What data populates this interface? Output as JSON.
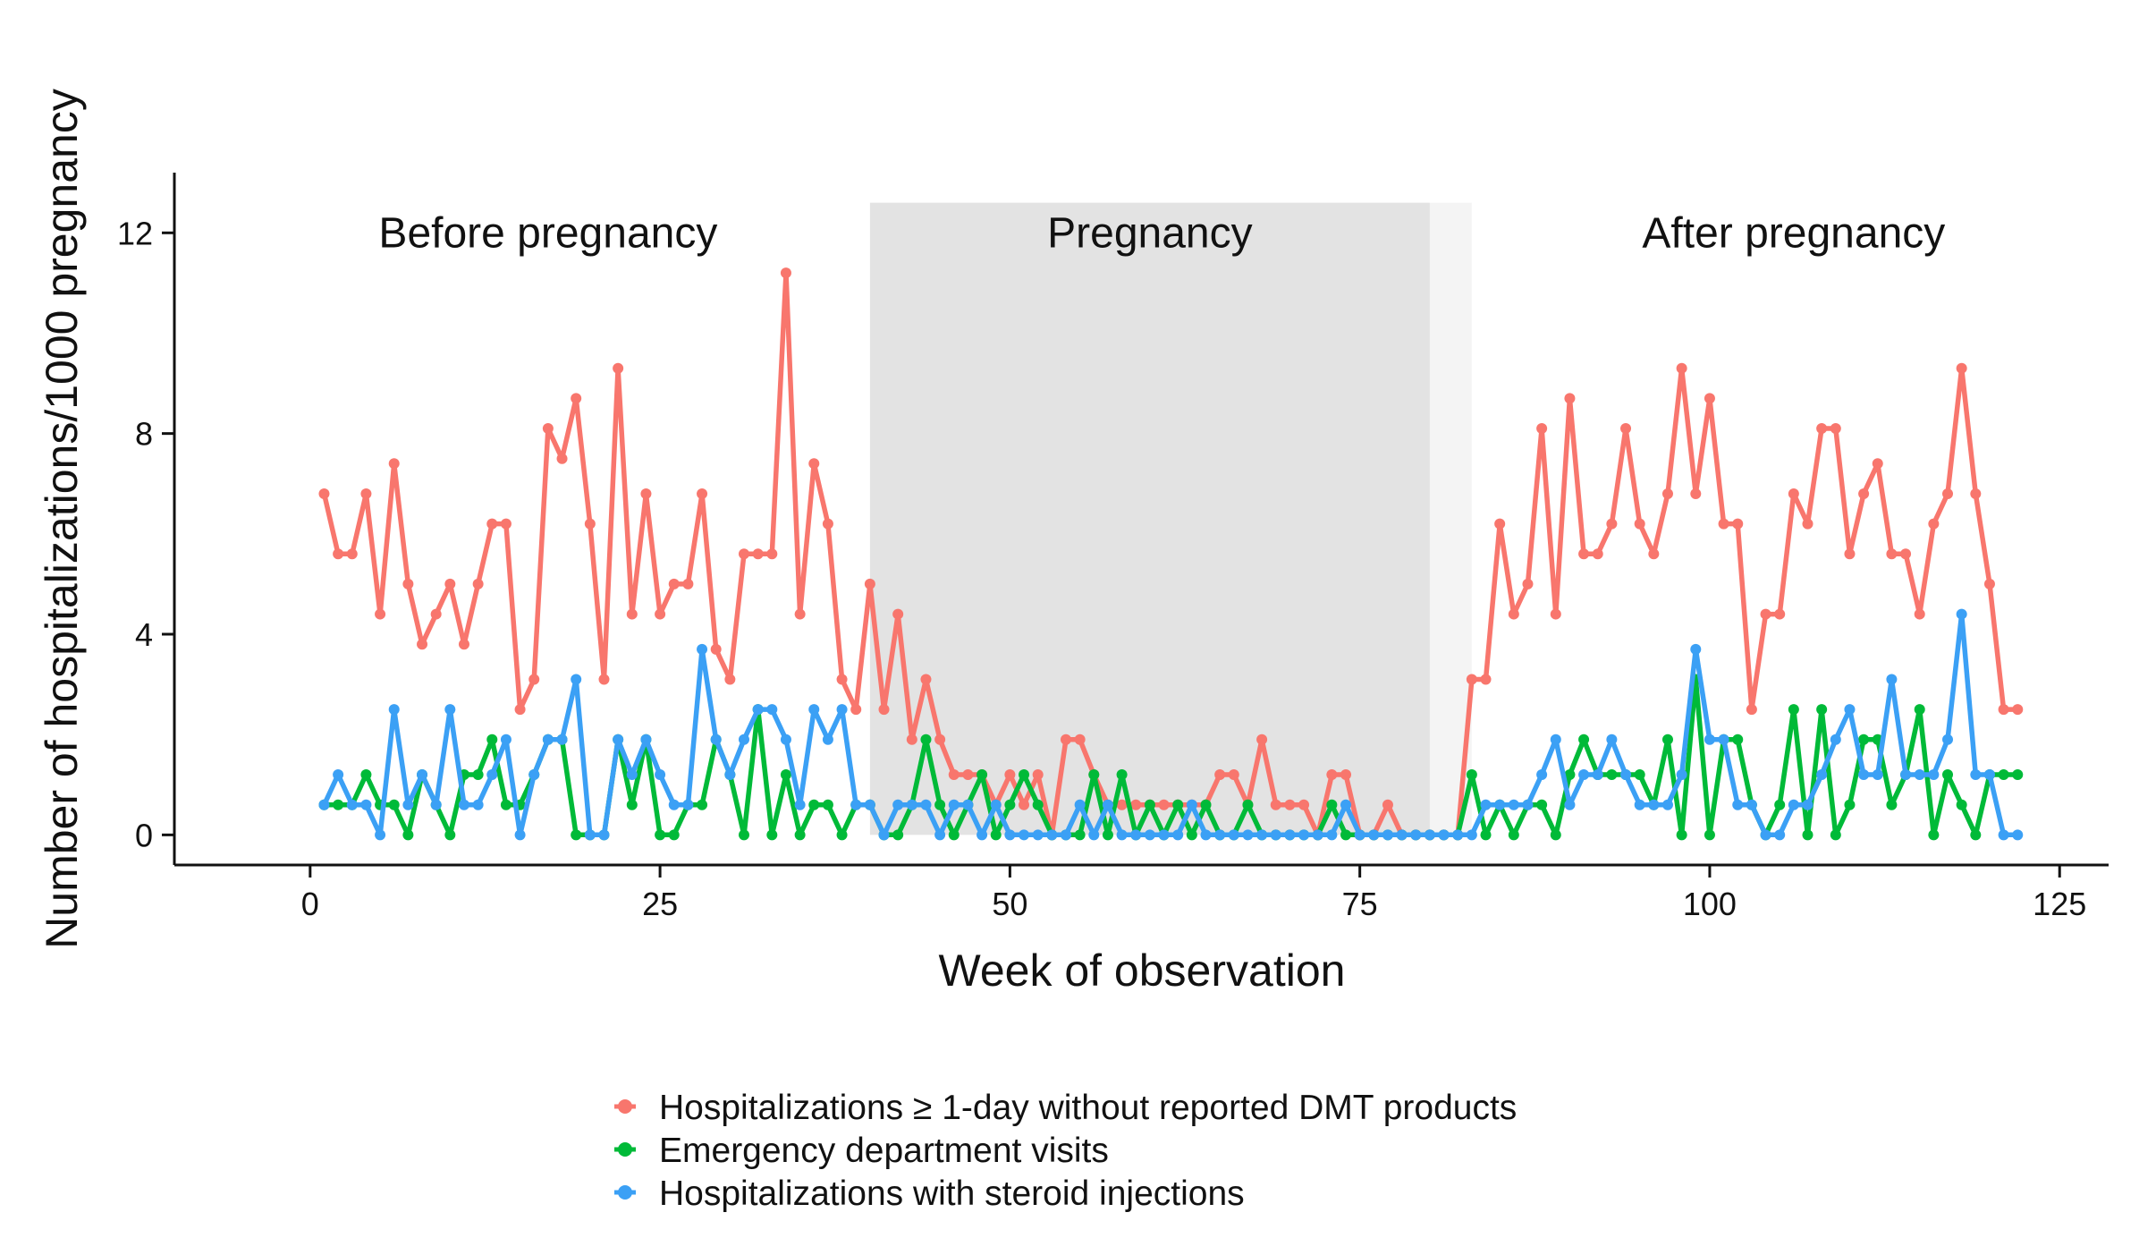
{
  "chart_data": {
    "type": "line",
    "title": "",
    "xlabel": "Week of observation",
    "ylabel": "Number of hospitalizations/1000 pregnancy",
    "xlim": [
      -9.7,
      128.5
    ],
    "ylim": [
      -0.6,
      13.2
    ],
    "xticks": [
      0,
      25,
      50,
      75,
      100,
      125
    ],
    "yticks": [
      0,
      4,
      8,
      12
    ],
    "xtick_labels": [
      "0",
      "25",
      "50",
      "75",
      "100",
      "125"
    ],
    "ytick_labels": [
      "0",
      "4",
      "8",
      "12"
    ],
    "grid": false,
    "legend_position": "bottom",
    "regions": [
      {
        "name": "before",
        "label": "Before pregnancy",
        "label_x": 17,
        "label_y": 12
      },
      {
        "name": "pregnancy",
        "label": "Pregnancy",
        "x_start": 40,
        "x_end": 80,
        "y_top": 12.6,
        "shade": "#e3e3e3",
        "label_x": 60,
        "label_y": 12
      },
      {
        "name": "transition",
        "label": "",
        "x_start": 80,
        "x_end": 83,
        "y_top": 12.6,
        "shade": "#f4f4f4"
      },
      {
        "name": "after",
        "label": "After pregnancy",
        "label_x": 106,
        "label_y": 12
      }
    ],
    "x": [
      1,
      2,
      3,
      4,
      5,
      6,
      7,
      8,
      9,
      10,
      11,
      12,
      13,
      14,
      15,
      16,
      17,
      18,
      19,
      20,
      21,
      22,
      23,
      24,
      25,
      26,
      27,
      28,
      29,
      30,
      31,
      32,
      33,
      34,
      35,
      36,
      37,
      38,
      39,
      40,
      41,
      42,
      43,
      44,
      45,
      46,
      47,
      48,
      49,
      50,
      51,
      52,
      53,
      54,
      55,
      56,
      57,
      58,
      59,
      60,
      61,
      62,
      63,
      64,
      65,
      66,
      67,
      68,
      69,
      70,
      71,
      72,
      73,
      74,
      75,
      76,
      77,
      78,
      79,
      80,
      81,
      82,
      83,
      84,
      85,
      86,
      87,
      88,
      89,
      90,
      91,
      92,
      93,
      94,
      95,
      96,
      97,
      98,
      99,
      100,
      101,
      102,
      103,
      104,
      105,
      106,
      107,
      108,
      109,
      110,
      111,
      112,
      113,
      114,
      115,
      116,
      117,
      118,
      119,
      120,
      121,
      122
    ],
    "series": [
      {
        "name": "Hospitalizations ≥ 1-day without reported DMT products",
        "color": "#f8766d",
        "values": [
          6.8,
          5.6,
          5.6,
          6.8,
          4.4,
          7.4,
          5.0,
          3.8,
          4.4,
          5.0,
          3.8,
          5.0,
          6.2,
          6.2,
          2.5,
          3.1,
          8.1,
          7.5,
          8.7,
          6.2,
          3.1,
          9.3,
          4.4,
          6.8,
          4.4,
          5.0,
          5.0,
          6.8,
          3.7,
          3.1,
          5.6,
          5.6,
          5.6,
          11.2,
          4.4,
          7.4,
          6.2,
          3.1,
          2.5,
          5.0,
          2.5,
          4.4,
          1.9,
          3.1,
          1.9,
          1.2,
          1.2,
          1.2,
          0.6,
          1.2,
          0.6,
          1.2,
          0.0,
          1.9,
          1.9,
          1.2,
          0.6,
          0.6,
          0.6,
          0.6,
          0.6,
          0.6,
          0.6,
          0.6,
          1.2,
          1.2,
          0.6,
          1.9,
          0.6,
          0.6,
          0.6,
          0.0,
          1.2,
          1.2,
          0.0,
          0.0,
          0.6,
          0.0,
          0.0,
          0.0,
          0.0,
          0.0,
          3.1,
          3.1,
          6.2,
          4.4,
          5.0,
          8.1,
          4.4,
          8.7,
          5.6,
          5.6,
          6.2,
          8.1,
          6.2,
          5.6,
          6.8,
          9.3,
          6.8,
          8.7,
          6.2,
          6.2,
          2.5,
          4.4,
          4.4,
          6.8,
          6.2,
          8.1,
          8.1,
          5.6,
          6.8,
          7.4,
          5.6,
          5.6,
          4.4,
          6.2,
          6.8,
          9.3,
          6.8,
          5.0,
          2.5,
          2.5
        ]
      },
      {
        "name": "Emergency department visits",
        "color": "#00ba38",
        "values": [
          0.6,
          0.6,
          0.6,
          1.2,
          0.6,
          0.6,
          0.0,
          1.2,
          0.6,
          0.0,
          1.2,
          1.2,
          1.9,
          0.6,
          0.6,
          1.2,
          1.9,
          1.9,
          0.0,
          0.0,
          0.0,
          1.9,
          0.6,
          1.9,
          0.0,
          0.0,
          0.6,
          0.6,
          1.9,
          1.2,
          0.0,
          2.5,
          0.0,
          1.2,
          0.0,
          0.6,
          0.6,
          0.0,
          0.6,
          0.6,
          0.0,
          0.0,
          0.6,
          1.9,
          0.6,
          0.0,
          0.6,
          1.2,
          0.0,
          0.6,
          1.2,
          0.6,
          0.0,
          0.0,
          0.0,
          1.2,
          0.0,
          1.2,
          0.0,
          0.6,
          0.0,
          0.6,
          0.0,
          0.6,
          0.0,
          0.0,
          0.6,
          0.0,
          0.0,
          0.0,
          0.0,
          0.0,
          0.6,
          0.0,
          0.0,
          0.0,
          0.0,
          0.0,
          0.0,
          0.0,
          0.0,
          0.0,
          1.2,
          0.0,
          0.6,
          0.0,
          0.6,
          0.6,
          0.0,
          1.2,
          1.9,
          1.2,
          1.2,
          1.2,
          1.2,
          0.6,
          1.9,
          0.0,
          3.1,
          0.0,
          1.9,
          1.9,
          0.6,
          0.0,
          0.6,
          2.5,
          0.0,
          2.5,
          0.0,
          0.6,
          1.9,
          1.9,
          0.6,
          1.2,
          2.5,
          0.0,
          1.2,
          0.6,
          0.0,
          1.2,
          1.2,
          1.2
        ]
      },
      {
        "name": "Hospitalizations with steroid injections",
        "color": "#3ba0f5",
        "values": [
          0.6,
          1.2,
          0.6,
          0.6,
          0.0,
          2.5,
          0.6,
          1.2,
          0.6,
          2.5,
          0.6,
          0.6,
          1.2,
          1.9,
          0.0,
          1.2,
          1.9,
          1.9,
          3.1,
          0.0,
          0.0,
          1.9,
          1.2,
          1.9,
          1.2,
          0.6,
          0.6,
          3.7,
          1.9,
          1.2,
          1.9,
          2.5,
          2.5,
          1.9,
          0.6,
          2.5,
          1.9,
          2.5,
          0.6,
          0.6,
          0.0,
          0.6,
          0.6,
          0.6,
          0.0,
          0.6,
          0.6,
          0.0,
          0.6,
          0.0,
          0.0,
          0.0,
          0.0,
          0.0,
          0.6,
          0.0,
          0.6,
          0.0,
          0.0,
          0.0,
          0.0,
          0.0,
          0.6,
          0.0,
          0.0,
          0.0,
          0.0,
          0.0,
          0.0,
          0.0,
          0.0,
          0.0,
          0.0,
          0.6,
          0.0,
          0.0,
          0.0,
          0.0,
          0.0,
          0.0,
          0.0,
          0.0,
          0.0,
          0.6,
          0.6,
          0.6,
          0.6,
          1.2,
          1.9,
          0.6,
          1.2,
          1.2,
          1.9,
          1.2,
          0.6,
          0.6,
          0.6,
          1.2,
          3.7,
          1.9,
          1.9,
          0.6,
          0.6,
          0.0,
          0.0,
          0.6,
          0.6,
          1.2,
          1.9,
          2.5,
          1.2,
          1.2,
          3.1,
          1.2,
          1.2,
          1.2,
          1.9,
          4.4,
          1.2,
          1.2,
          0.0,
          0.0
        ]
      }
    ]
  }
}
